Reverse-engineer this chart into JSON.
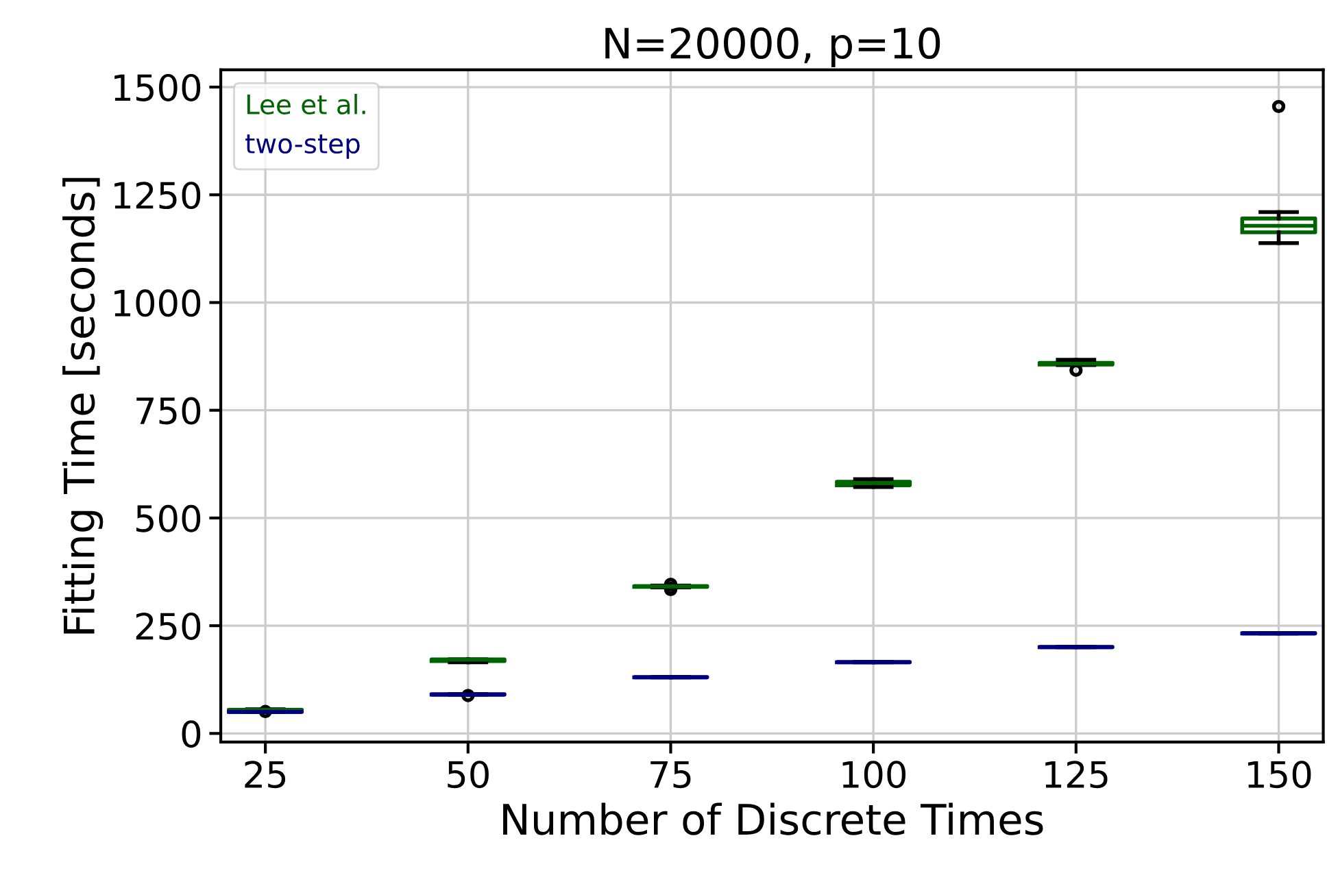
{
  "chart_data": {
    "type": "box",
    "title": "N=20000, p=10",
    "xlabel": "Number of Discrete Times",
    "ylabel": "Fitting Time [seconds]",
    "categories": [
      "25",
      "50",
      "75",
      "100",
      "125",
      "150"
    ],
    "series": [
      {
        "name": "Lee et al.",
        "color": "#006400",
        "boxes": [
          {
            "low": 54,
            "q1": 54,
            "median": 55,
            "q3": 55,
            "high": 56,
            "outliers": [
              51
            ]
          },
          {
            "low": 165,
            "q1": 168,
            "median": 171,
            "q3": 172,
            "high": 172
          },
          {
            "low": 339,
            "q1": 340,
            "median": 341,
            "q3": 342,
            "high": 343,
            "outliers": [
              334,
              337,
              346
            ]
          },
          {
            "low": 572,
            "q1": 576,
            "median": 581,
            "q3": 584,
            "high": 590
          },
          {
            "low": 855,
            "q1": 856,
            "median": 858,
            "q3": 860,
            "high": 867,
            "outliers": [
              843
            ]
          },
          {
            "low": 1138,
            "q1": 1163,
            "median": 1178,
            "q3": 1195,
            "high": 1210,
            "outliers": [
              1455
            ]
          }
        ]
      },
      {
        "name": "two-step",
        "color": "#000080",
        "boxes": [
          {
            "low": 50,
            "q1": 50,
            "median": 50,
            "q3": 51,
            "high": 51
          },
          {
            "low": 90,
            "q1": 90,
            "median": 90,
            "q3": 91,
            "high": 91,
            "outliers": [
              88
            ]
          },
          {
            "low": 130,
            "q1": 130,
            "median": 130,
            "q3": 131,
            "high": 131
          },
          {
            "low": 165,
            "q1": 165,
            "median": 165,
            "q3": 166,
            "high": 166
          },
          {
            "low": 200,
            "q1": 200,
            "median": 200,
            "q3": 201,
            "high": 201
          },
          {
            "low": 232,
            "q1": 232,
            "median": 232,
            "q3": 233,
            "high": 233
          }
        ]
      }
    ],
    "ylim": [
      -20,
      1540
    ],
    "yticks": [
      0,
      250,
      500,
      750,
      1000,
      1250,
      1500
    ],
    "grid": true,
    "legend": "top left"
  }
}
